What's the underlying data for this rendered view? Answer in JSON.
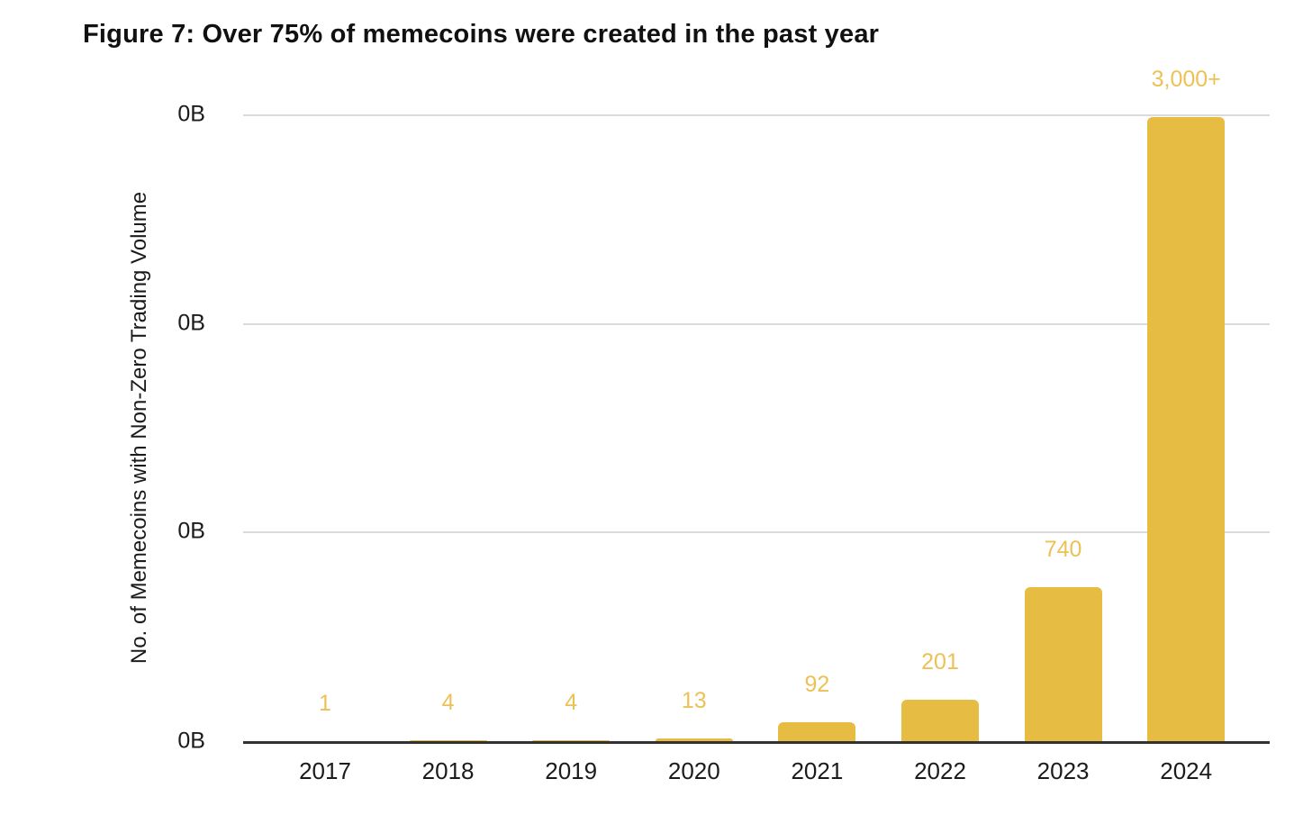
{
  "title": "Figure 7: Over 75% of memecoins were created in the past year",
  "chart_data": {
    "type": "bar",
    "categories": [
      "2017",
      "2018",
      "2019",
      "2020",
      "2021",
      "2022",
      "2023",
      "2024"
    ],
    "values": [
      1,
      4,
      4,
      13,
      92,
      201,
      740,
      3000
    ],
    "value_labels": [
      "1",
      "4",
      "4",
      "13",
      "92",
      "201",
      "740",
      "3,000+"
    ],
    "title": "Figure 7: Over 75% of memecoins were created in the past year",
    "xlabel": "",
    "ylabel": "No. of Memecoins with Non-Zero Trading Volume",
    "y_tick_labels": [
      "0B",
      "0B",
      "0B",
      "0B"
    ],
    "ylim": [
      0,
      3013
    ],
    "grid": true,
    "legend": "none",
    "bar_color": "#E6BC43",
    "value_label_color": "#ECC156",
    "axis_text_color": "#1b1b1b",
    "gridline_color": "#dadada",
    "baseline_color": "#333333"
  }
}
